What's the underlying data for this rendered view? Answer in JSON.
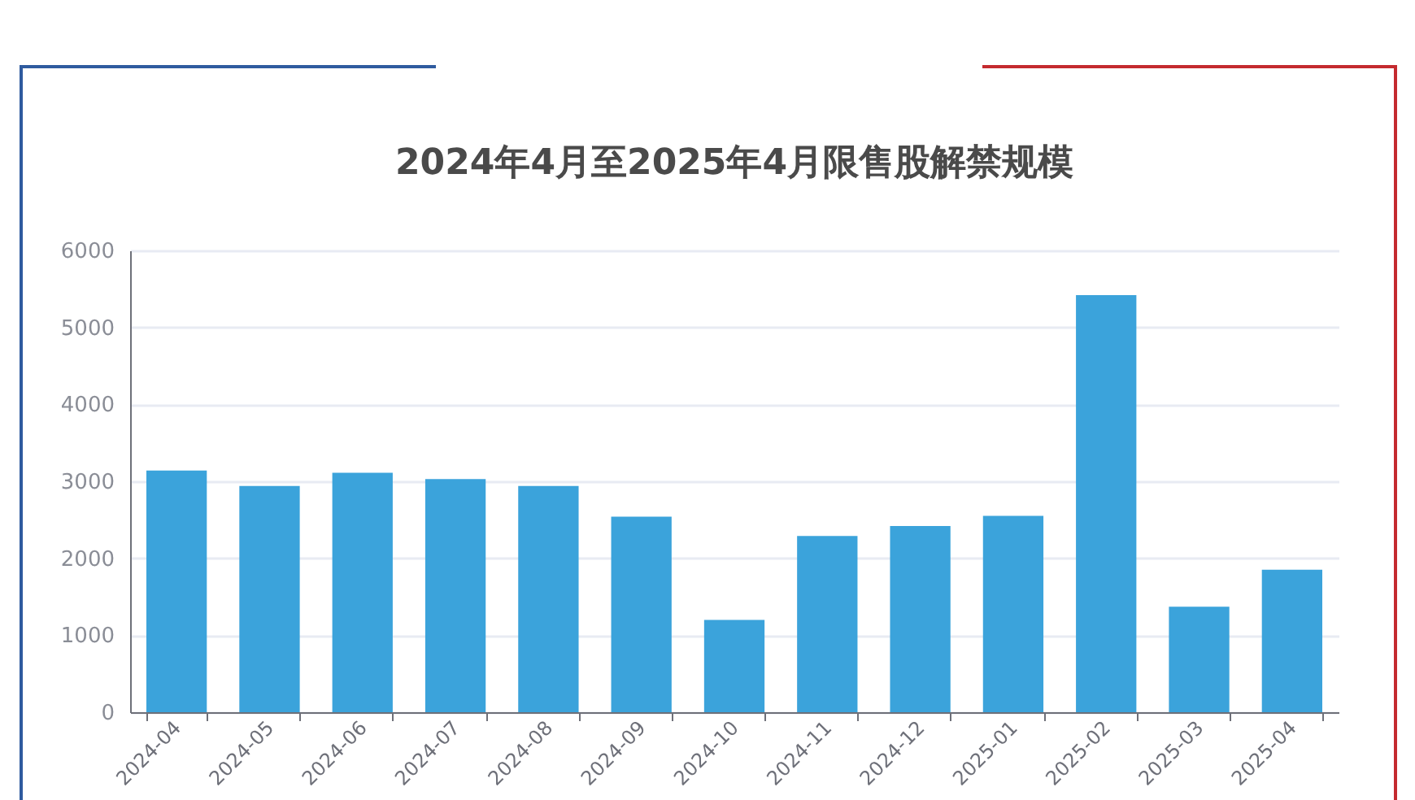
{
  "chart_data": {
    "type": "bar",
    "title": "2024年4月至2025年4月限售股解禁规模",
    "categories": [
      "2024-04",
      "2024-05",
      "2024-06",
      "2024-07",
      "2024-08",
      "2024-09",
      "2024-10",
      "2024-11",
      "2024-12",
      "2025-01",
      "2025-02",
      "2025-03",
      "2025-04"
    ],
    "values": [
      3140,
      2940,
      3110,
      3030,
      2940,
      2540,
      1200,
      2290,
      2420,
      2550,
      5420,
      1370,
      1850
    ],
    "color": "#3ba3db",
    "ylim": [
      0,
      6000
    ],
    "yticks": [
      0,
      1000,
      2000,
      3000,
      4000,
      5000,
      6000
    ],
    "grid": "y"
  }
}
